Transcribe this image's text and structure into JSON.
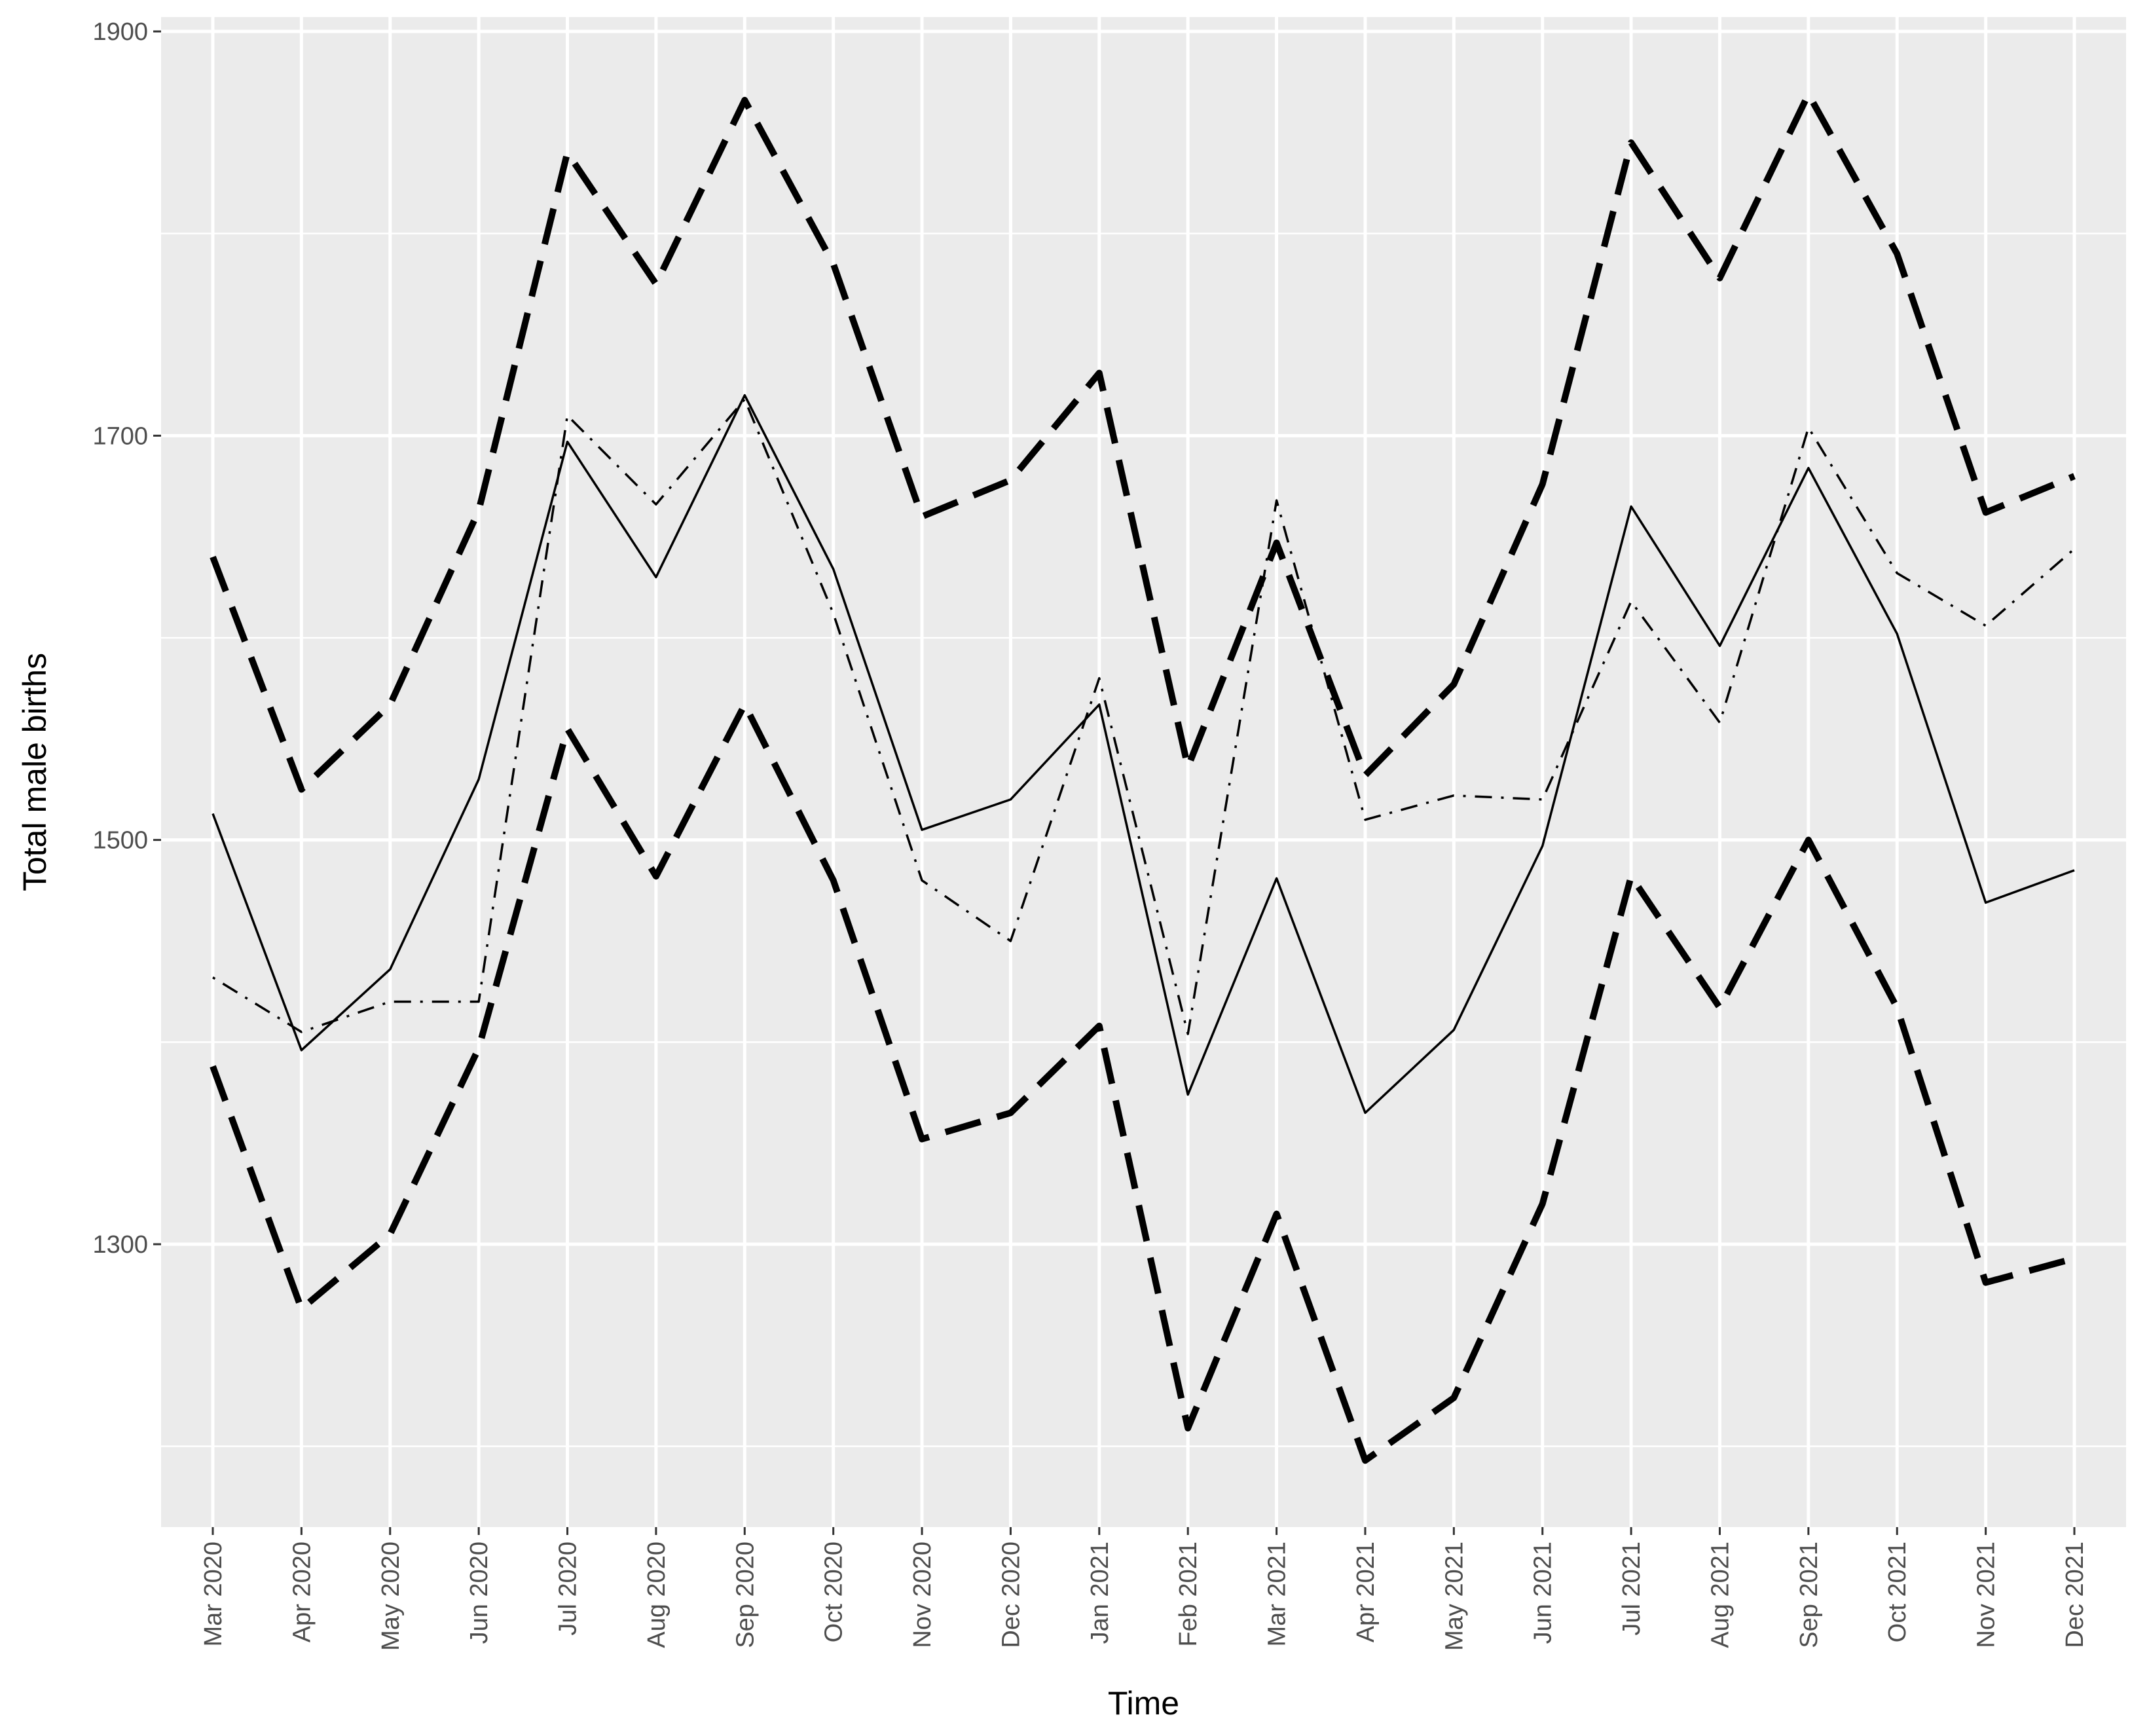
{
  "chart_data": {
    "type": "line",
    "xlabel": "Time",
    "ylabel": "Total male births",
    "categories": [
      "Mar 2020",
      "Apr 2020",
      "May 2020",
      "Jun 2020",
      "Jul 2020",
      "Aug 2020",
      "Sep 2020",
      "Oct 2020",
      "Nov 2020",
      "Dec 2020",
      "Jan 2021",
      "Feb 2021",
      "Mar 2021",
      "Apr 2021",
      "May 2021",
      "Jun 2021",
      "Jul 2021",
      "Aug 2021",
      "Sep 2021",
      "Oct 2021",
      "Nov 2021",
      "Dec 2021"
    ],
    "ylim": [
      1163,
      1900
    ],
    "yticks": [
      "1300",
      "1500",
      "1700",
      "1900"
    ],
    "minor_yticks": [
      1200,
      1400,
      1600,
      1800
    ],
    "grid": true,
    "panel_background": "#ebebeb",
    "series": [
      {
        "linetype": "solid",
        "color": "#000000",
        "values": [
          1513,
          1396,
          1436,
          1530,
          1697,
          1630,
          1720,
          1634,
          1505,
          1520,
          1567,
          1374,
          1481,
          1365,
          1406,
          1497,
          1665,
          1596,
          1684,
          1602,
          1469,
          1485
        ]
      },
      {
        "linetype": "dotdash",
        "color": "#000000",
        "values": [
          1432,
          1405,
          1420,
          1420,
          1710,
          1666,
          1718,
          1612,
          1480,
          1450,
          1580,
          1404,
          1668,
          1510,
          1522,
          1520,
          1618,
          1558,
          1704,
          1632,
          1606,
          1644
        ]
      },
      {
        "linetype": "longdash",
        "color": "#000000",
        "values": [
          1640,
          1525,
          1567,
          1663,
          1840,
          1775,
          1866,
          1785,
          1660,
          1678,
          1731,
          1536,
          1647,
          1532,
          1577,
          1676,
          1845,
          1778,
          1869,
          1790,
          1662,
          1680
        ]
      },
      {
        "linetype": "longdash",
        "color": "#000000",
        "values": [
          1388,
          1268,
          1305,
          1397,
          1555,
          1482,
          1567,
          1480,
          1352,
          1365,
          1408,
          1209,
          1315,
          1193,
          1224,
          1320,
          1482,
          1417,
          1500,
          1417,
          1281,
          1293
        ]
      }
    ]
  }
}
